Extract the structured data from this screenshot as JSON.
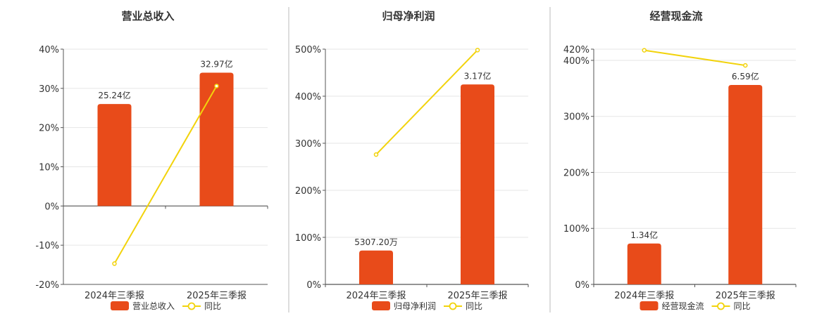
{
  "colors": {
    "bar": "#e84b1a",
    "line": "#f2d30c",
    "axis": "#555555",
    "grid": "#e6e6e6",
    "divider": "#bbbbbb"
  },
  "chart_data": [
    {
      "type": "bar",
      "title": "营业总收入",
      "categories": [
        "2024年三季报",
        "2025年三季报"
      ],
      "bar_values": [
        26,
        34
      ],
      "bar_labels": [
        "25.24亿",
        "32.97亿"
      ],
      "line_values": [
        -14.7,
        30.6
      ],
      "ylim": [
        -20,
        40
      ],
      "yticks": [
        -20,
        -10,
        0,
        10,
        20,
        30,
        40
      ],
      "ytick_labels": [
        "-20%",
        "-10%",
        "0%",
        "10%",
        "20%",
        "30%",
        "40%"
      ],
      "legend": [
        "营业总收入",
        "同比"
      ],
      "legend_position": "bottom"
    },
    {
      "type": "bar",
      "title": "归母净利润",
      "categories": [
        "2024年三季报",
        "2025年三季报"
      ],
      "bar_values": [
        72,
        425
      ],
      "bar_labels": [
        "5307.20万",
        "3.17亿"
      ],
      "line_values": [
        276,
        498
      ],
      "ylim": [
        0,
        500
      ],
      "yticks": [
        0,
        100,
        200,
        300,
        400,
        500
      ],
      "ytick_labels": [
        "0%",
        "100%",
        "200%",
        "300%",
        "400%",
        "500%"
      ],
      "legend": [
        "归母净利润",
        "同比"
      ],
      "legend_position": "bottom"
    },
    {
      "type": "bar",
      "title": "经营现金流",
      "categories": [
        "2024年三季报",
        "2025年三季报"
      ],
      "bar_values": [
        73,
        356
      ],
      "bar_labels": [
        "1.34亿",
        "6.59亿"
      ],
      "line_values": [
        418,
        391
      ],
      "ylim": [
        0,
        420
      ],
      "yticks": [
        0,
        100,
        200,
        300,
        400,
        420
      ],
      "ytick_labels": [
        "0%",
        "100%",
        "200%",
        "300%",
        "400%",
        "420%"
      ],
      "legend": [
        "经营现金流",
        "同比"
      ],
      "legend_position": "bottom"
    }
  ]
}
